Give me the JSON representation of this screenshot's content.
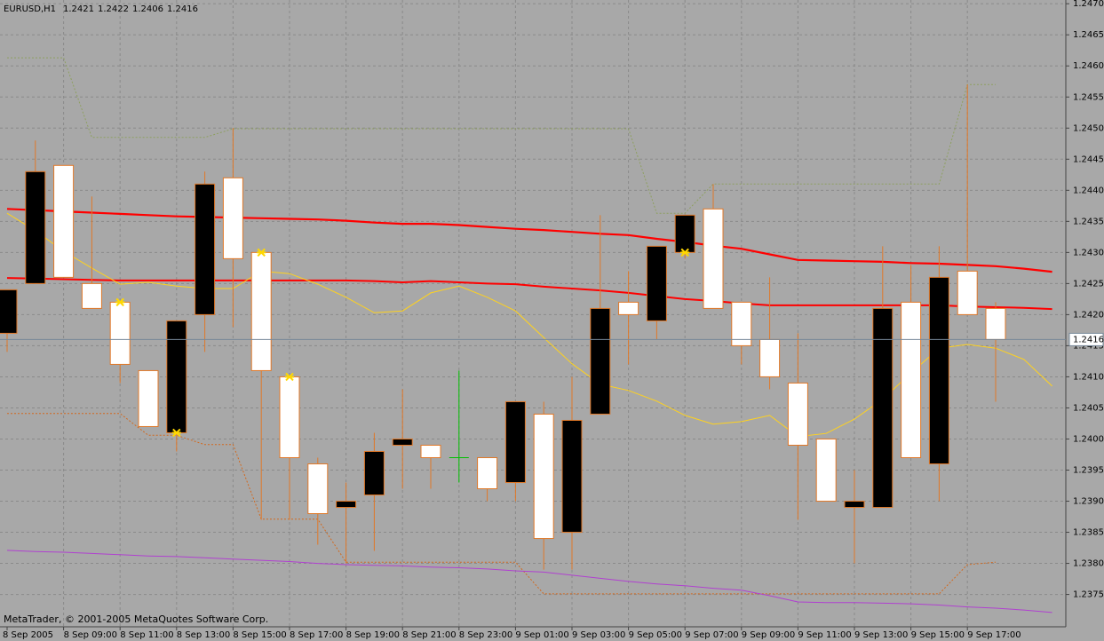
{
  "chart_data": {
    "type": "candlestick",
    "title": "EURUSD,H1",
    "copyright": "MetaTrader, © 2001-2005 MetaQuotes Software Corp.",
    "categories": [
      "8 Sep 2005",
      null,
      "8 Sep 09:00",
      null,
      "8 Sep 11:00",
      null,
      "8 Sep 13:00",
      null,
      "8 Sep 15:00",
      null,
      "8 Sep 17:00",
      null,
      "8 Sep 19:00",
      null,
      "8 Sep 21:00",
      null,
      "8 Sep 23:00",
      null,
      "9 Sep 01:00",
      null,
      "9 Sep 03:00",
      null,
      "9 Sep 05:00",
      null,
      "9 Sep 07:00",
      null,
      "9 Sep 09:00",
      null,
      "9 Sep 11:00",
      null,
      "9 Sep 13:00",
      null,
      "9 Sep 15:00",
      null,
      "9 Sep 17:00",
      null,
      null,
      null
    ],
    "open": [
      1.2417,
      1.2425,
      1.2444,
      1.2425,
      1.2422,
      1.2411,
      1.2401,
      1.242,
      1.2442,
      1.243,
      1.241,
      1.2396,
      1.2389,
      1.2391,
      1.2399,
      1.2399,
      1.2397,
      1.2397,
      1.2393,
      1.2404,
      1.2385,
      1.2404,
      1.2422,
      1.2419,
      1.243,
      1.2437,
      1.2422,
      1.2416,
      1.2409,
      1.24,
      1.2389,
      1.2389,
      1.2422,
      1.2396,
      1.2427,
      1.2421,
      null,
      null
    ],
    "high": [
      1.2424,
      1.2448,
      1.2444,
      1.2439,
      1.2422,
      1.2411,
      1.2419,
      1.2443,
      1.245,
      1.243,
      1.241,
      1.2397,
      1.2393,
      1.2401,
      1.2408,
      1.2399,
      1.2411,
      1.2397,
      1.2406,
      1.2406,
      1.241,
      1.2436,
      1.2427,
      1.2431,
      1.2436,
      1.2441,
      1.2422,
      1.2426,
      1.2417,
      1.24,
      1.2395,
      1.2431,
      1.2428,
      1.2431,
      1.2457,
      1.2422,
      null,
      null
    ],
    "low": [
      1.2414,
      1.2425,
      1.2426,
      1.2421,
      1.2409,
      1.2402,
      1.2398,
      1.2414,
      1.2418,
      1.2387,
      1.2387,
      1.2383,
      1.238,
      1.2382,
      1.2392,
      1.2392,
      1.2393,
      1.239,
      1.239,
      1.2379,
      1.2379,
      1.2404,
      1.2412,
      1.2416,
      1.2429,
      1.2421,
      1.2412,
      1.2408,
      1.2387,
      1.239,
      1.238,
      1.2389,
      1.2397,
      1.239,
      1.242,
      1.2406,
      null,
      null
    ],
    "close": [
      1.2424,
      1.2443,
      1.2426,
      1.2421,
      1.2412,
      1.2402,
      1.2419,
      1.2441,
      1.2429,
      1.2411,
      1.2397,
      1.2388,
      1.239,
      1.2398,
      1.24,
      1.2397,
      1.2397,
      1.2392,
      1.2406,
      1.2384,
      1.2403,
      1.2421,
      1.242,
      1.2431,
      1.2436,
      1.2421,
      1.2415,
      1.241,
      1.2399,
      1.239,
      1.239,
      1.2421,
      1.2397,
      1.2426,
      1.242,
      1.2416,
      null,
      null
    ],
    "up_color": "#000000",
    "down_color": "#ffffff",
    "doji_color": "#00c000",
    "wick_color": "#e07828",
    "series": [
      {
        "color": "#ff0000",
        "width": 2.2,
        "dotted": false,
        "values": [
          1.2437,
          1.24368,
          1.24366,
          1.24364,
          1.24362,
          1.2436,
          1.24358,
          1.24357,
          1.24356,
          1.24355,
          1.24354,
          1.24353,
          1.24351,
          1.24348,
          1.24346,
          1.24346,
          1.24344,
          1.24341,
          1.24338,
          1.24336,
          1.24333,
          1.2433,
          1.24328,
          1.24322,
          1.24317,
          1.24311,
          1.24306,
          1.24297,
          1.24288,
          1.24287,
          1.24286,
          1.24285,
          1.24283,
          1.24282,
          1.2428,
          1.24278,
          1.24274,
          1.24269
        ]
      },
      {
        "color": "#ff0000",
        "width": 2,
        "dotted": false,
        "values": [
          1.24259,
          1.24258,
          1.24257,
          1.24256,
          1.24255,
          1.24255,
          1.24255,
          1.24255,
          1.24255,
          1.24255,
          1.24255,
          1.24255,
          1.24255,
          1.24254,
          1.24252,
          1.24254,
          1.24252,
          1.2425,
          1.24249,
          1.24245,
          1.24242,
          1.24239,
          1.24235,
          1.2423,
          1.24225,
          1.24222,
          1.24218,
          1.24215,
          1.24215,
          1.24215,
          1.24215,
          1.24215,
          1.24215,
          1.24215,
          1.24213,
          1.24212,
          1.24211,
          1.24209
        ]
      },
      {
        "color": "#ffd21e",
        "width": 1,
        "dotted": false,
        "values": [
          1.24363,
          1.24335,
          1.24302,
          1.24275,
          1.24249,
          1.24252,
          1.24246,
          1.24242,
          1.24242,
          1.2427,
          1.24266,
          1.24249,
          1.24228,
          1.24203,
          1.24206,
          1.24235,
          1.24246,
          1.24228,
          1.24206,
          1.24163,
          1.24121,
          1.24088,
          1.24078,
          1.24061,
          1.24038,
          1.24024,
          1.24028,
          1.24038,
          1.24004,
          1.24009,
          1.24032,
          1.24064,
          1.24106,
          1.24146,
          1.24152,
          1.24146,
          1.24128,
          1.24085
        ]
      },
      {
        "color": "#8ea060",
        "width": 1,
        "dotted": true,
        "values": [
          1.24613,
          1.24613,
          1.24613,
          1.24485,
          1.24485,
          1.24485,
          1.24485,
          1.24485,
          1.24499,
          1.24499,
          1.24499,
          1.24499,
          1.24499,
          1.24499,
          1.24499,
          1.24499,
          1.24499,
          1.24499,
          1.24499,
          1.24499,
          1.24499,
          1.24499,
          1.24499,
          1.24363,
          1.24363,
          1.2441,
          1.2441,
          1.2441,
          1.2441,
          1.2441,
          1.2441,
          1.2441,
          1.2441,
          1.2441,
          1.2457,
          1.2457,
          null,
          null
        ]
      },
      {
        "color": "#d2691e",
        "width": 1,
        "dotted": true,
        "values": [
          1.24041,
          1.24041,
          1.24041,
          1.24041,
          1.24041,
          1.24006,
          1.24006,
          1.23991,
          1.23991,
          1.23871,
          1.23871,
          1.23871,
          1.23802,
          1.23802,
          1.23802,
          1.23802,
          1.23802,
          1.23802,
          1.23802,
          1.23751,
          1.23751,
          1.23751,
          1.23751,
          1.23751,
          1.23751,
          1.23751,
          1.23751,
          1.23751,
          1.23751,
          1.23751,
          1.23751,
          1.23751,
          1.23751,
          1.23751,
          1.23798,
          1.23802,
          null,
          null
        ]
      },
      {
        "color": "#b040d0",
        "width": 1,
        "dotted": false,
        "values": [
          1.23821,
          1.23819,
          1.23818,
          1.23816,
          1.23814,
          1.23812,
          1.23811,
          1.23809,
          1.23807,
          1.23805,
          1.23803,
          1.238,
          1.23798,
          1.23797,
          1.23796,
          1.23794,
          1.23793,
          1.23791,
          1.23788,
          1.23786,
          1.23781,
          1.23776,
          1.23771,
          1.23767,
          1.23764,
          1.2376,
          1.23757,
          1.23748,
          1.23738,
          1.23737,
          1.23737,
          1.23736,
          1.23735,
          1.23733,
          1.2373,
          1.23728,
          1.23725,
          1.23721
        ]
      }
    ],
    "markers": {
      "color": "#ffd700",
      "values": [
        null,
        null,
        null,
        null,
        1.2422,
        null,
        1.2401,
        null,
        null,
        1.243,
        1.241,
        null,
        null,
        null,
        null,
        null,
        null,
        null,
        null,
        null,
        null,
        null,
        null,
        null,
        1.243,
        null,
        null,
        null,
        null,
        null,
        null,
        null,
        null,
        null,
        null,
        null,
        null,
        null
      ]
    },
    "ylim": [
      1.23698,
      1.24706
    ],
    "yticks": [
      1.2375,
      {
        "value": 1.238,
        "label": "1.2380"
      },
      1.2385,
      {
        "value": 1.239,
        "label": "1.2390"
      },
      1.2395,
      {
        "value": 1.24,
        "label": "1.2400"
      },
      1.2405,
      {
        "value": 1.241,
        "label": "1.2410"
      },
      1.2415,
      {
        "value": 1.242,
        "label": "1.2420"
      },
      1.2425,
      {
        "value": 1.243,
        "label": "1.2430"
      },
      1.2435,
      {
        "value": 1.244,
        "label": "1.2440"
      },
      1.2445,
      {
        "value": 1.245,
        "label": "1.2450"
      },
      1.2455,
      {
        "value": 1.246,
        "label": "1.2460"
      },
      1.2465,
      {
        "value": 1.247,
        "label": "1.2470"
      }
    ],
    "grid": true,
    "current_price_color": "#778899"
  }
}
